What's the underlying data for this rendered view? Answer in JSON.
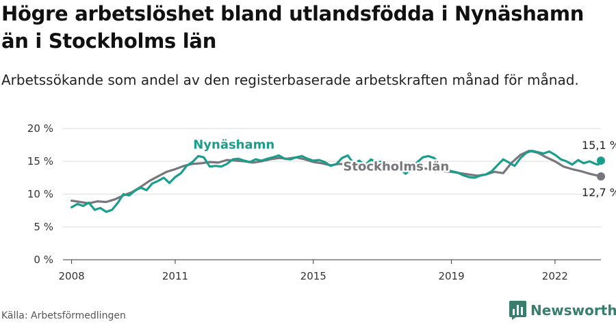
{
  "chart_data": {
    "type": "line",
    "title": "Högre arbetslöshet bland utlandsfödda i Nynäshamn än i Stockholms län",
    "subtitle": "Arbetssökande som andel av den registerbaserade arbetskraften månad för månad.",
    "source": "Källa: Arbetsförmedlingen",
    "xlabel": "",
    "ylabel": "",
    "xlim": [
      2007.75,
      2023.33
    ],
    "ylim": [
      0,
      20
    ],
    "x_ticks": [
      2008,
      2011,
      2015,
      2019,
      2022
    ],
    "x_tick_labels": [
      "2008",
      "2011",
      "2015",
      "2019",
      "2022"
    ],
    "y_ticks": [
      0,
      5,
      10,
      15,
      20
    ],
    "y_tick_labels": [
      "0 %",
      "5 %",
      "10 %",
      "15 %",
      "20 %"
    ],
    "grid": "horizontal",
    "series": [
      {
        "name": "Nynäshamn",
        "color": "#1a9e8c",
        "end_label": "15,1 %",
        "points": [
          [
            2008.0,
            8.0
          ],
          [
            2008.17,
            8.5
          ],
          [
            2008.33,
            8.2
          ],
          [
            2008.5,
            8.7
          ],
          [
            2008.67,
            7.6
          ],
          [
            2008.83,
            7.9
          ],
          [
            2009.0,
            7.3
          ],
          [
            2009.17,
            7.6
          ],
          [
            2009.33,
            8.6
          ],
          [
            2009.5,
            10.0
          ],
          [
            2009.67,
            9.8
          ],
          [
            2009.83,
            10.5
          ],
          [
            2010.0,
            11.0
          ],
          [
            2010.17,
            10.6
          ],
          [
            2010.33,
            11.6
          ],
          [
            2010.5,
            12.0
          ],
          [
            2010.67,
            12.5
          ],
          [
            2010.83,
            11.7
          ],
          [
            2011.0,
            12.6
          ],
          [
            2011.17,
            13.2
          ],
          [
            2011.33,
            14.3
          ],
          [
            2011.5,
            14.9
          ],
          [
            2011.67,
            15.8
          ],
          [
            2011.83,
            15.6
          ],
          [
            2012.0,
            14.2
          ],
          [
            2012.17,
            14.3
          ],
          [
            2012.33,
            14.2
          ],
          [
            2012.5,
            14.6
          ],
          [
            2012.67,
            15.3
          ],
          [
            2012.83,
            15.4
          ],
          [
            2013.0,
            15.1
          ],
          [
            2013.17,
            14.9
          ],
          [
            2013.33,
            15.3
          ],
          [
            2013.5,
            15.1
          ],
          [
            2013.67,
            15.4
          ],
          [
            2013.83,
            15.6
          ],
          [
            2014.0,
            15.9
          ],
          [
            2014.17,
            15.4
          ],
          [
            2014.33,
            15.3
          ],
          [
            2014.5,
            15.6
          ],
          [
            2014.67,
            15.8
          ],
          [
            2014.83,
            15.4
          ],
          [
            2015.0,
            15.1
          ],
          [
            2015.17,
            15.2
          ],
          [
            2015.33,
            14.9
          ],
          [
            2015.5,
            14.3
          ],
          [
            2015.67,
            14.6
          ],
          [
            2015.83,
            15.5
          ],
          [
            2016.0,
            15.9
          ],
          [
            2016.17,
            14.6
          ],
          [
            2016.33,
            15.1
          ],
          [
            2016.5,
            14.4
          ],
          [
            2016.67,
            15.3
          ],
          [
            2016.83,
            14.8
          ],
          [
            2017.0,
            15.0
          ],
          [
            2017.17,
            14.5
          ],
          [
            2017.33,
            13.5
          ],
          [
            2017.5,
            14.0
          ],
          [
            2017.67,
            13.1
          ],
          [
            2017.83,
            13.8
          ],
          [
            2018.0,
            14.8
          ],
          [
            2018.17,
            15.6
          ],
          [
            2018.33,
            15.8
          ],
          [
            2018.5,
            15.5
          ],
          [
            2018.67,
            14.5
          ],
          [
            2018.83,
            13.8
          ],
          [
            2019.0,
            13.5
          ],
          [
            2019.17,
            13.3
          ],
          [
            2019.33,
            12.9
          ],
          [
            2019.5,
            12.6
          ],
          [
            2019.67,
            12.5
          ],
          [
            2019.83,
            12.8
          ],
          [
            2020.0,
            13.0
          ],
          [
            2020.17,
            13.5
          ],
          [
            2020.33,
            14.4
          ],
          [
            2020.5,
            15.3
          ],
          [
            2020.67,
            14.8
          ],
          [
            2020.83,
            14.3
          ],
          [
            2021.0,
            15.5
          ],
          [
            2021.17,
            16.3
          ],
          [
            2021.33,
            16.6
          ],
          [
            2021.5,
            16.4
          ],
          [
            2021.67,
            16.2
          ],
          [
            2021.83,
            16.5
          ],
          [
            2022.0,
            16.0
          ],
          [
            2022.17,
            15.3
          ],
          [
            2022.33,
            15.0
          ],
          [
            2022.5,
            14.5
          ],
          [
            2022.67,
            15.2
          ],
          [
            2022.83,
            14.7
          ],
          [
            2023.0,
            15.0
          ],
          [
            2023.17,
            14.6
          ],
          [
            2023.25,
            14.5
          ],
          [
            2023.33,
            15.1
          ]
        ]
      },
      {
        "name": "Stockholms län",
        "color": "#77767c",
        "end_label": "12,7 %",
        "points": [
          [
            2008.0,
            9.0
          ],
          [
            2008.25,
            8.8
          ],
          [
            2008.5,
            8.6
          ],
          [
            2008.75,
            8.9
          ],
          [
            2009.0,
            8.8
          ],
          [
            2009.25,
            9.2
          ],
          [
            2009.5,
            9.8
          ],
          [
            2009.75,
            10.3
          ],
          [
            2010.0,
            11.1
          ],
          [
            2010.25,
            12.0
          ],
          [
            2010.5,
            12.7
          ],
          [
            2010.75,
            13.4
          ],
          [
            2011.0,
            13.8
          ],
          [
            2011.25,
            14.3
          ],
          [
            2011.5,
            14.6
          ],
          [
            2011.75,
            14.7
          ],
          [
            2012.0,
            14.9
          ],
          [
            2012.25,
            14.8
          ],
          [
            2012.5,
            15.2
          ],
          [
            2012.75,
            15.1
          ],
          [
            2013.0,
            15.0
          ],
          [
            2013.25,
            14.8
          ],
          [
            2013.5,
            15.0
          ],
          [
            2013.75,
            15.3
          ],
          [
            2014.0,
            15.5
          ],
          [
            2014.25,
            15.4
          ],
          [
            2014.5,
            15.6
          ],
          [
            2014.75,
            15.3
          ],
          [
            2015.0,
            14.9
          ],
          [
            2015.25,
            14.7
          ],
          [
            2015.5,
            14.4
          ],
          [
            2015.75,
            14.6
          ],
          [
            2016.0,
            14.5
          ],
          [
            2016.25,
            14.3
          ],
          [
            2016.5,
            14.6
          ],
          [
            2016.75,
            14.3
          ],
          [
            2017.0,
            14.3
          ],
          [
            2017.25,
            14.1
          ],
          [
            2017.5,
            14.0
          ],
          [
            2017.75,
            13.9
          ],
          [
            2018.0,
            14.0
          ],
          [
            2018.25,
            13.9
          ],
          [
            2018.5,
            13.6
          ],
          [
            2018.75,
            13.5
          ],
          [
            2019.0,
            13.4
          ],
          [
            2019.25,
            13.2
          ],
          [
            2019.5,
            13.0
          ],
          [
            2019.75,
            12.8
          ],
          [
            2020.0,
            13.0
          ],
          [
            2020.25,
            13.4
          ],
          [
            2020.5,
            13.2
          ],
          [
            2020.75,
            14.8
          ],
          [
            2021.0,
            16.0
          ],
          [
            2021.25,
            16.6
          ],
          [
            2021.5,
            16.3
          ],
          [
            2021.75,
            15.6
          ],
          [
            2022.0,
            15.0
          ],
          [
            2022.25,
            14.2
          ],
          [
            2022.5,
            13.8
          ],
          [
            2022.75,
            13.5
          ],
          [
            2023.0,
            13.1
          ],
          [
            2023.17,
            12.9
          ],
          [
            2023.33,
            12.7
          ]
        ]
      }
    ]
  },
  "branding": {
    "name": "Newsworthy",
    "color": "#3a7d6f",
    "icon": "bar-chart-icon"
  }
}
